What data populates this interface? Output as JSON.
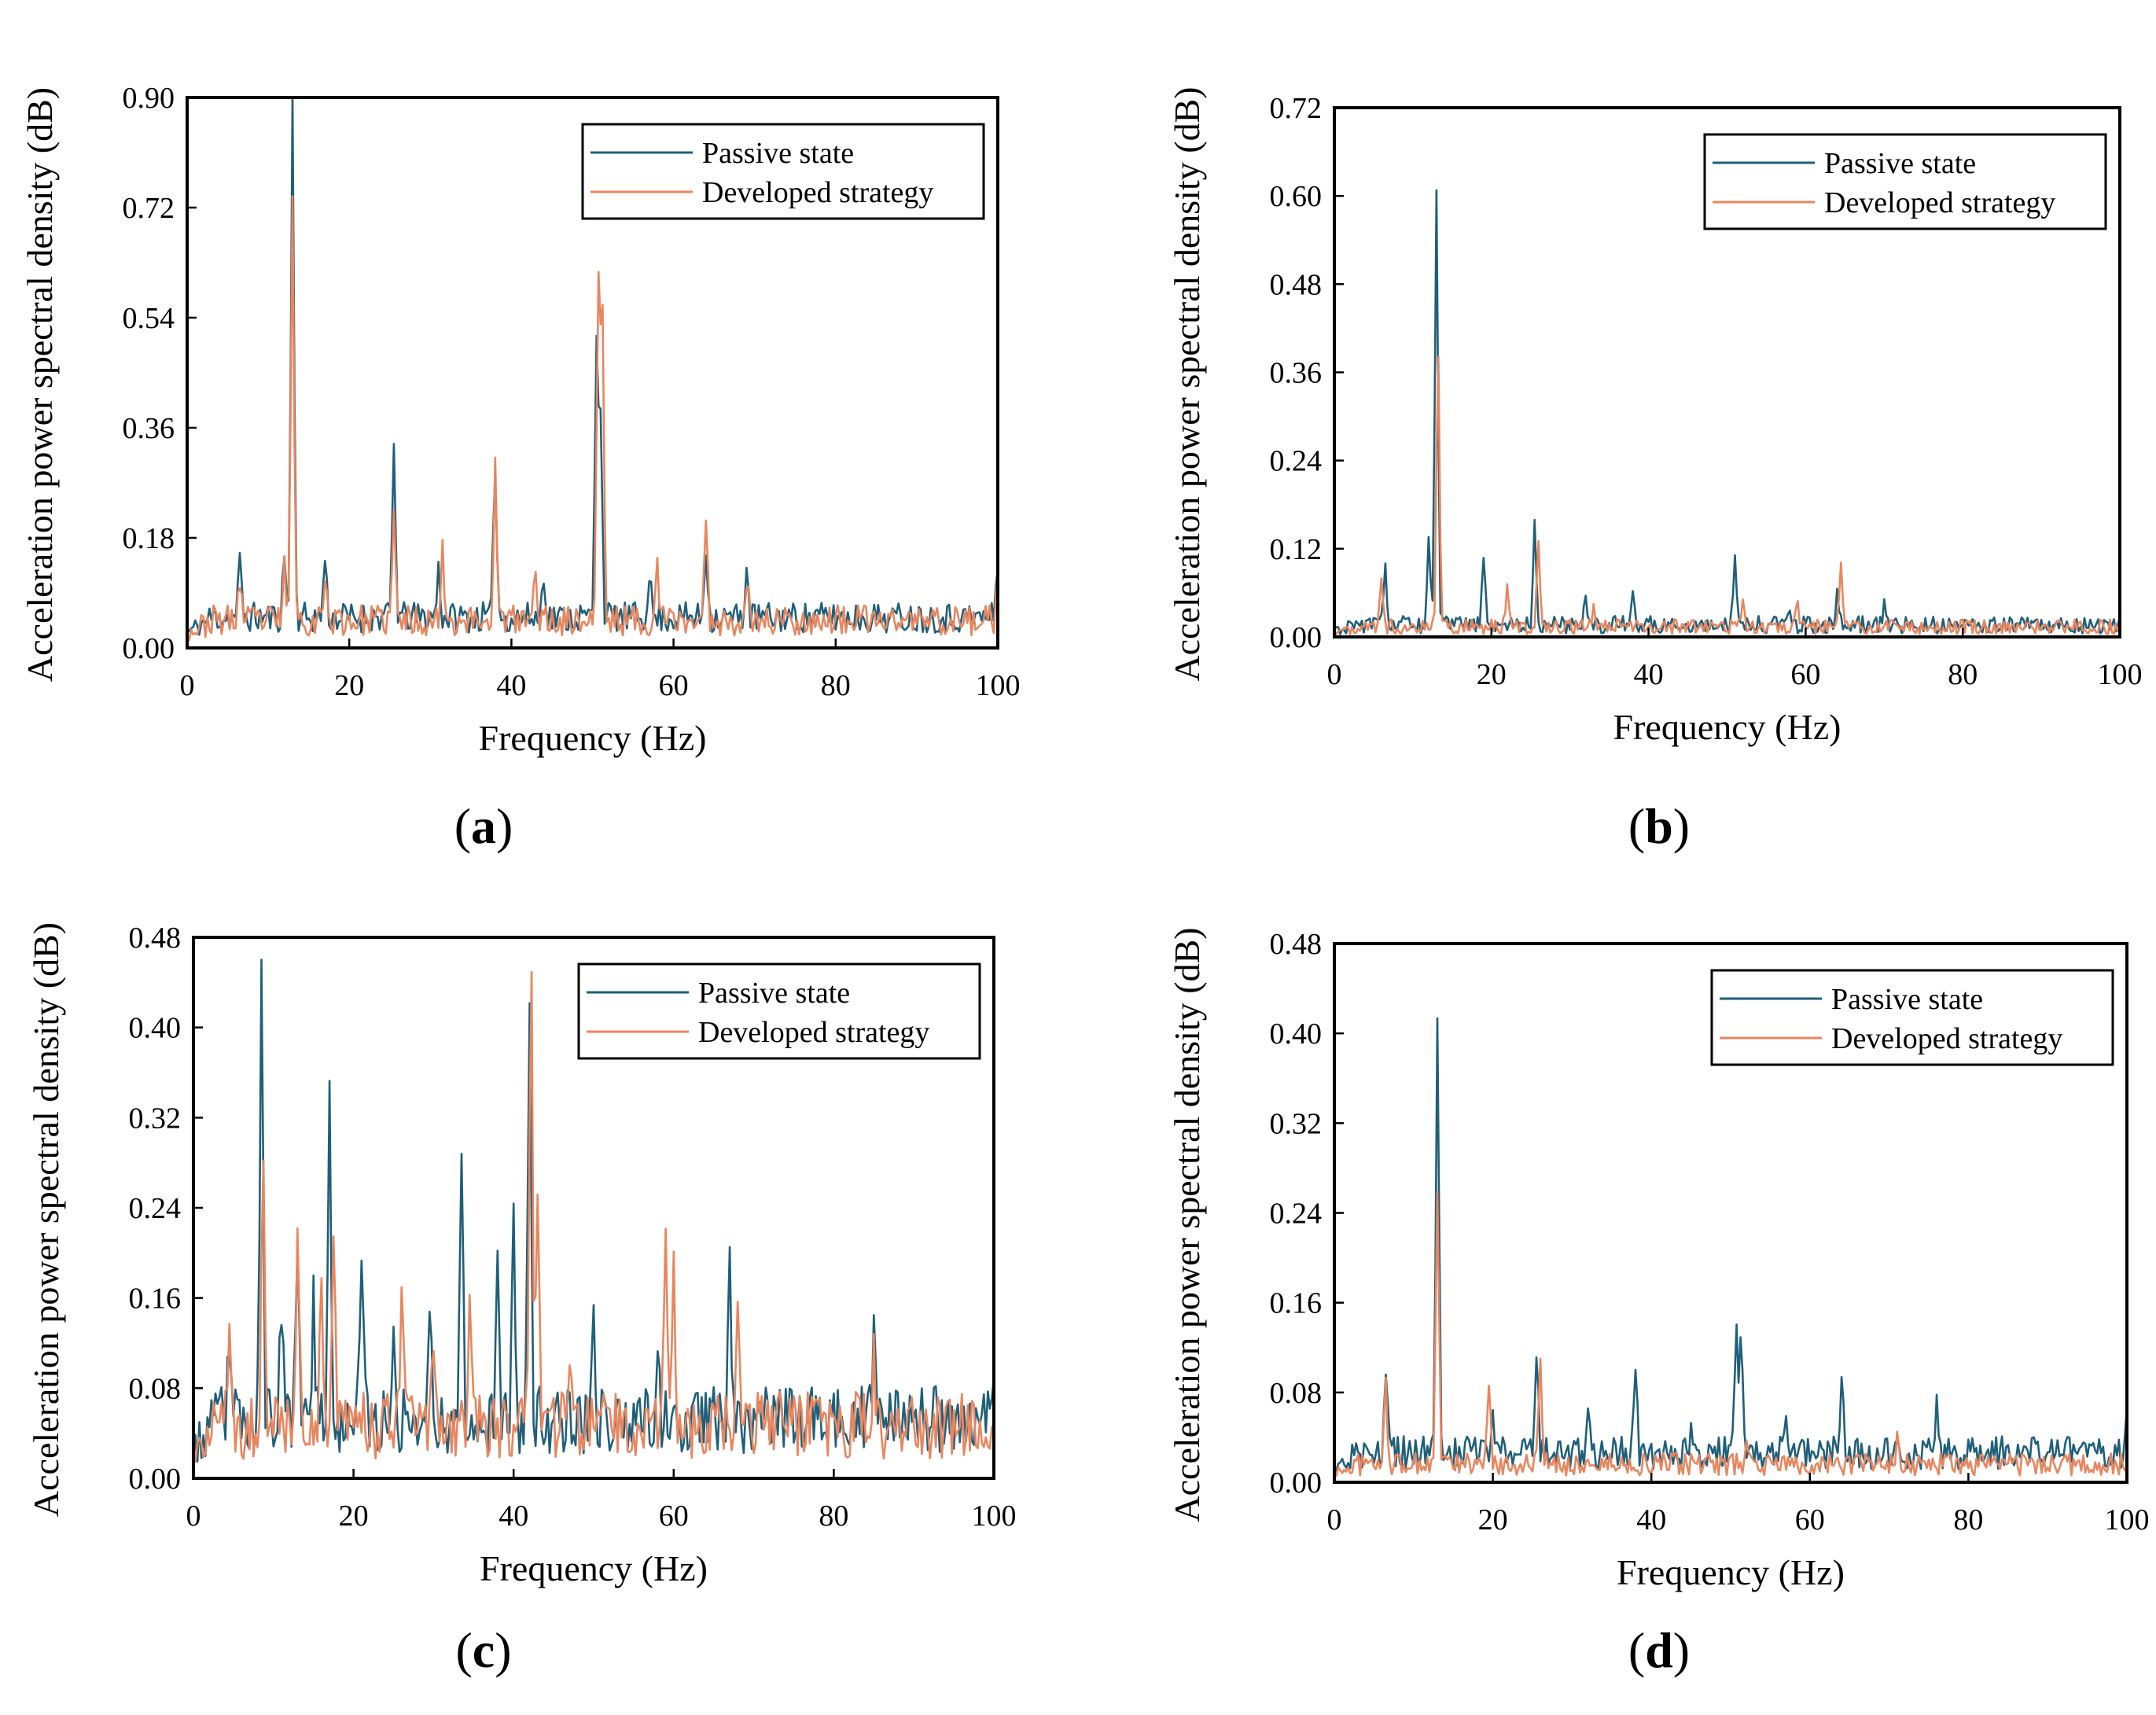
{
  "colors": {
    "passive": "#1f5f7a",
    "developed": "#e8865f"
  },
  "chart_data": [
    {
      "type": "line",
      "panel_label": "a",
      "xlabel": "Frequency (Hz)",
      "ylabel": "Acceleration power spectral density (dB)",
      "xlim": [
        0,
        100
      ],
      "ylim": [
        0,
        0.9
      ],
      "xticks": [
        0,
        20,
        40,
        60,
        80,
        100
      ],
      "yticks": [
        "0.00",
        "0.18",
        "0.36",
        "0.54",
        "0.72",
        "0.90"
      ],
      "legend_position": "top-right",
      "series": [
        {
          "name": "Passive state",
          "color": "#1f5f7a",
          "base": 0.04,
          "noise": 0.025,
          "seed": 11,
          "peaks": [
            [
              6.5,
              0.09
            ],
            [
              12,
              0.1
            ],
            [
              13,
              0.84
            ],
            [
              17,
              0.1
            ],
            [
              25.5,
              0.28
            ],
            [
              31,
              0.08
            ],
            [
              38,
              0.26
            ],
            [
              44,
              0.08
            ],
            [
              50.5,
              0.46
            ],
            [
              51,
              0.34
            ],
            [
              57,
              0.08
            ],
            [
              64,
              0.12
            ],
            [
              69,
              0.08
            ],
            [
              100,
              0.1
            ]
          ]
        },
        {
          "name": "Developed strategy",
          "color": "#e8865f",
          "base": 0.035,
          "noise": 0.025,
          "seed": 23,
          "peaks": [
            [
              6.5,
              0.07
            ],
            [
              12,
              0.09
            ],
            [
              13,
              0.68
            ],
            [
              17,
              0.08
            ],
            [
              25.5,
              0.17
            ],
            [
              31.5,
              0.13
            ],
            [
              38,
              0.25
            ],
            [
              43,
              0.09
            ],
            [
              50.7,
              0.53
            ],
            [
              51.2,
              0.53
            ],
            [
              58,
              0.08
            ],
            [
              64,
              0.15
            ],
            [
              69,
              0.07
            ],
            [
              100,
              0.06
            ]
          ]
        }
      ]
    },
    {
      "type": "line",
      "panel_label": "b",
      "xlabel": "Frequency (Hz)",
      "ylabel": "Acceleration power spectral density (dB)",
      "xlim": [
        0,
        100
      ],
      "ylim": [
        0,
        0.72
      ],
      "xticks": [
        0,
        20,
        40,
        60,
        80,
        100
      ],
      "yticks": [
        "0.00",
        "0.12",
        "0.24",
        "0.36",
        "0.48",
        "0.60",
        "0.72"
      ],
      "legend_position": "top-right",
      "series": [
        {
          "name": "Passive state",
          "color": "#1f5f7a",
          "base": 0.012,
          "noise": 0.012,
          "seed": 31,
          "peaks": [
            [
              6.5,
              0.08
            ],
            [
              12,
              0.11
            ],
            [
              13,
              0.59
            ],
            [
              19,
              0.09
            ],
            [
              25.5,
              0.14
            ],
            [
              32,
              0.05
            ],
            [
              38,
              0.04
            ],
            [
              51,
              0.1
            ],
            [
              58,
              0.03
            ],
            [
              64,
              0.04
            ],
            [
              70,
              0.03
            ]
          ]
        },
        {
          "name": "Developed strategy",
          "color": "#e8865f",
          "base": 0.01,
          "noise": 0.01,
          "seed": 47,
          "peaks": [
            [
              6,
              0.06
            ],
            [
              13.2,
              0.38
            ],
            [
              22,
              0.06
            ],
            [
              26,
              0.12
            ],
            [
              33,
              0.03
            ],
            [
              52,
              0.04
            ],
            [
              59,
              0.03
            ],
            [
              64.5,
              0.09
            ]
          ]
        }
      ]
    },
    {
      "type": "line",
      "panel_label": "c",
      "xlabel": "Frequency (Hz)",
      "ylabel": "Acceleration power spectral density (dB)",
      "xlim": [
        0,
        100
      ],
      "ylim": [
        0,
        0.48
      ],
      "xticks": [
        0,
        20,
        40,
        60,
        80,
        100
      ],
      "yticks": [
        "0.00",
        "0.08",
        "0.16",
        "0.24",
        "0.32",
        "0.40",
        "0.48"
      ],
      "legend_position": "top-right",
      "series": [
        {
          "name": "Passive state",
          "color": "#1f5f7a",
          "base": 0.04,
          "noise": 0.03,
          "seed": 53,
          "peaks": [
            [
              4.5,
              0.08
            ],
            [
              8.5,
              0.39
            ],
            [
              11,
              0.11
            ],
            [
              13,
              0.13
            ],
            [
              15,
              0.12
            ],
            [
              17,
              0.29
            ],
            [
              21,
              0.16
            ],
            [
              25,
              0.1
            ],
            [
              29.5,
              0.11
            ],
            [
              33.5,
              0.23
            ],
            [
              38,
              0.12
            ],
            [
              40,
              0.17
            ],
            [
              42,
              0.38
            ],
            [
              50,
              0.12
            ],
            [
              58,
              0.07
            ],
            [
              67,
              0.16
            ],
            [
              85,
              0.07
            ],
            [
              100,
              0.06
            ]
          ]
        },
        {
          "name": "Developed strategy",
          "color": "#e8865f",
          "base": 0.035,
          "noise": 0.03,
          "seed": 71,
          "peaks": [
            [
              4.5,
              0.08
            ],
            [
              8.7,
              0.26
            ],
            [
              13,
              0.18
            ],
            [
              16,
              0.14
            ],
            [
              17.5,
              0.18
            ],
            [
              26,
              0.13
            ],
            [
              30,
              0.08
            ],
            [
              34.5,
              0.14
            ],
            [
              42.2,
              0.41
            ],
            [
              43,
              0.23
            ],
            [
              47,
              0.07
            ],
            [
              59,
              0.16
            ],
            [
              60,
              0.16
            ],
            [
              68,
              0.12
            ],
            [
              85,
              0.06
            ]
          ]
        }
      ]
    },
    {
      "type": "line",
      "panel_label": "d",
      "xlabel": "Frequency (Hz)",
      "ylabel": "Acceleration power spectral density (dB)",
      "xlim": [
        0,
        100
      ],
      "ylim": [
        0,
        0.48
      ],
      "xticks": [
        0,
        20,
        40,
        60,
        80,
        100
      ],
      "yticks": [
        "0.00",
        "0.08",
        "0.16",
        "0.24",
        "0.32",
        "0.40",
        "0.48"
      ],
      "legend_position": "top-right",
      "series": [
        {
          "name": "Passive state",
          "color": "#1f5f7a",
          "base": 0.02,
          "noise": 0.015,
          "seed": 83,
          "peaks": [
            [
              6.5,
              0.08
            ],
            [
              13,
              0.39
            ],
            [
              20,
              0.05
            ],
            [
              25.5,
              0.1
            ],
            [
              32,
              0.03
            ],
            [
              38,
              0.07
            ],
            [
              45,
              0.03
            ],
            [
              50.7,
              0.12
            ],
            [
              51.3,
              0.11
            ],
            [
              57,
              0.04
            ],
            [
              64,
              0.07
            ],
            [
              76,
              0.05
            ],
            [
              100,
              0.03
            ]
          ]
        },
        {
          "name": "Developed strategy",
          "color": "#e8865f",
          "base": 0.012,
          "noise": 0.01,
          "seed": 97,
          "peaks": [
            [
              6.5,
              0.07
            ],
            [
              13,
              0.25
            ],
            [
              19.5,
              0.07
            ],
            [
              26,
              0.09
            ],
            [
              52,
              0.02
            ],
            [
              71,
              0.02
            ]
          ]
        }
      ]
    }
  ]
}
